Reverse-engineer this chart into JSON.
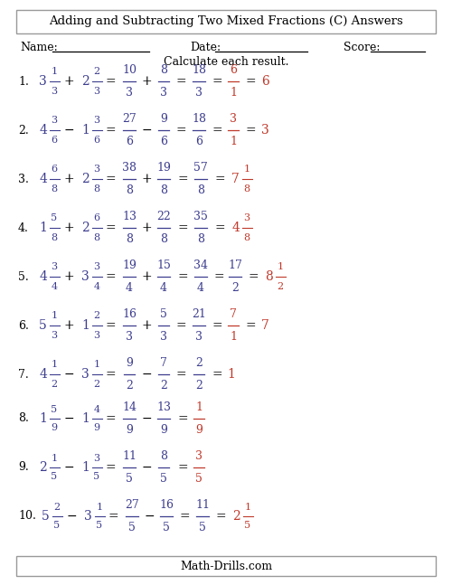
{
  "title": "Adding and Subtracting Two Mixed Fractions (C) Answers",
  "bg_color": "#f5f5f5",
  "text_color": "#000000",
  "blue_color": "#3d3d8f",
  "red_color": "#c0392b",
  "border_color": "#999999",
  "name_label": "Name:",
  "date_label": "Date:",
  "score_label": "Score:",
  "instruction": "Calculate each result.",
  "footer": "Math-Drills.com"
}
